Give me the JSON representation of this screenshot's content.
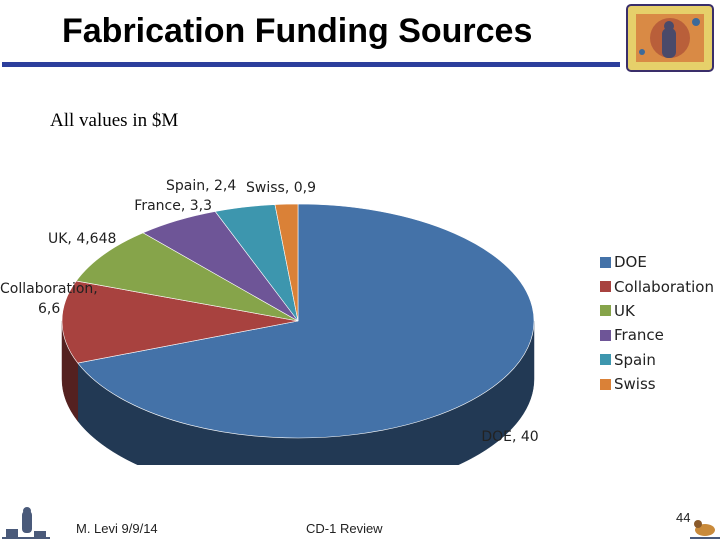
{
  "slide": {
    "title": "Fabrication Funding Sources",
    "subtitle": "All values in $M",
    "footer_author": "M. Levi 9/9/14",
    "footer_event": "CD-1 Review",
    "page_number": "44"
  },
  "colors": {
    "title_rule": "#2c3e9c",
    "DOE": "#4472a8",
    "Collaboration": "#a8423f",
    "UK": "#86a44a",
    "France": "#6e5597",
    "Spain": "#3d96ae",
    "Swiss": "#da8137"
  },
  "chart_data": {
    "type": "pie",
    "style": "3d",
    "categories": [
      "DOE",
      "Collaboration",
      "UK",
      "France",
      "Spain",
      "Swiss"
    ],
    "values": [
      40,
      6.6,
      4.648,
      3.3,
      2.4,
      0.9
    ],
    "data_labels": [
      "DOE, 40",
      "Collaboration, 6,6",
      "UK, 4,648",
      "France, 3,3",
      "Spain, 2,4",
      "Swiss, 0,9"
    ],
    "legend": {
      "position": "right",
      "entries": [
        "DOE",
        "Collaboration",
        "UK",
        "France",
        "Spain",
        "Swiss"
      ]
    }
  }
}
